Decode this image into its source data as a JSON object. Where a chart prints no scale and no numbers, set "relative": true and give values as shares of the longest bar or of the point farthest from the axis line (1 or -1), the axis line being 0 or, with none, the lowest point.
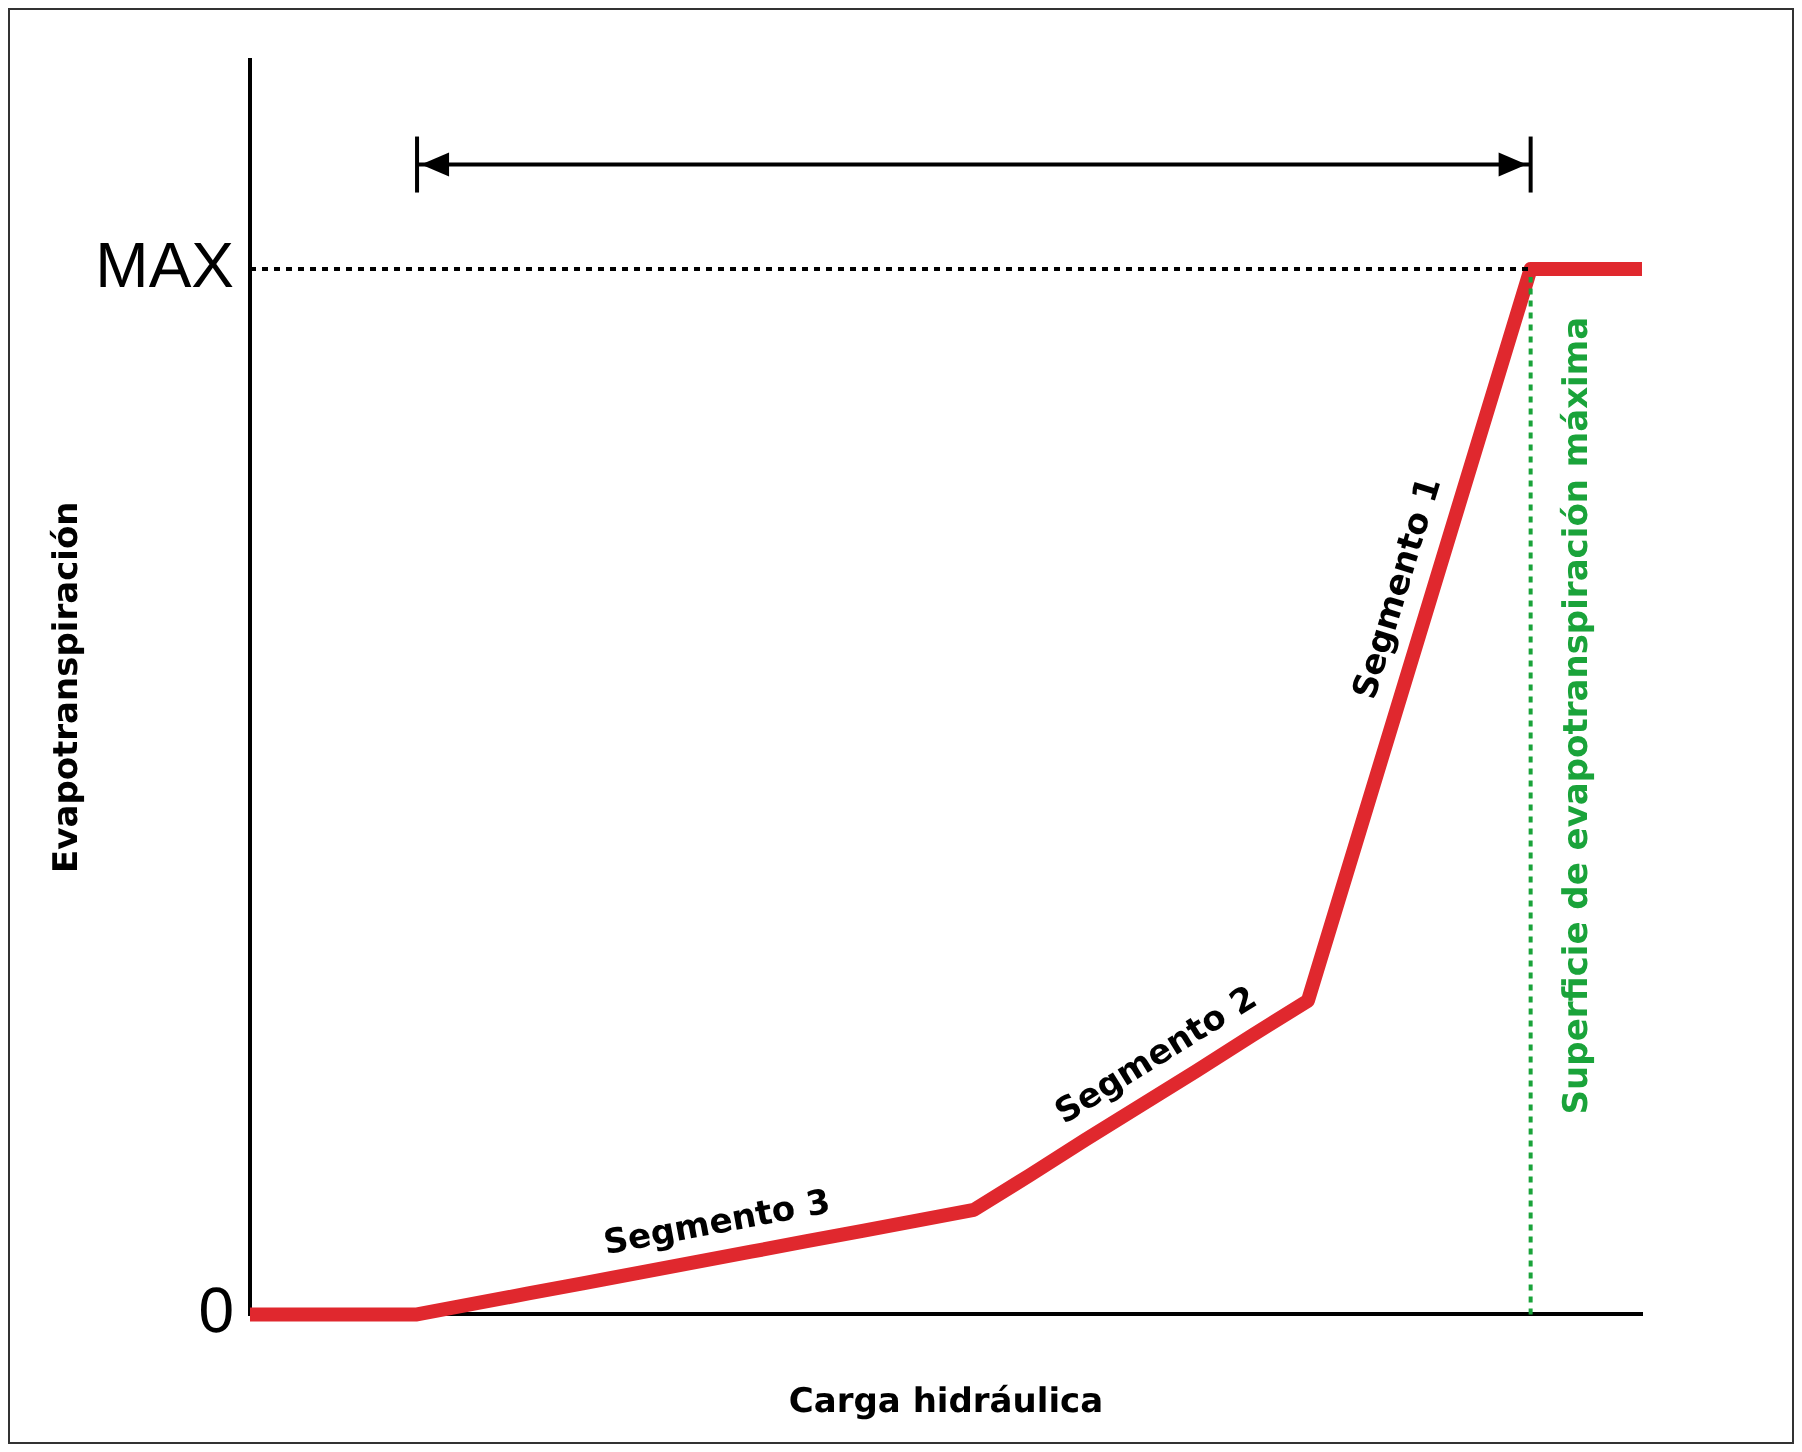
{
  "chart_data": {
    "type": "line",
    "xlabel": "Carga hidráulica",
    "ylabel": "Evapotranspiración",
    "categories": [
      null,
      null,
      null,
      null,
      null,
      null,
      null,
      null,
      null,
      null,
      null,
      null,
      null,
      null,
      null,
      null,
      null,
      null,
      null,
      null,
      null,
      null,
      null,
      null,
      null,
      null
    ],
    "series": [
      {
        "color": "#e0282e",
        "values": [
          0,
          0,
          0,
          0,
          0.01,
          0.02,
          0.03,
          0.04,
          0.05,
          0.06,
          0.07,
          0.08,
          0.09,
          0.1,
          0.133,
          0.167,
          0.2,
          0.233,
          0.267,
          0.3,
          0.475,
          0.65,
          0.825,
          1,
          1,
          1
        ]
      }
    ],
    "relative": true,
    "grid": false,
    "legend": false,
    "marker": "none",
    "line_style": "solid",
    "ref_lines": [
      {
        "axis": "y",
        "value": 1,
        "label": null,
        "color": "#000000",
        "line_style": "dotted"
      },
      {
        "axis": "x",
        "label": "Superficie de evapotranspiración máxima",
        "color": "#1aa33a",
        "line_style": "dotted"
      }
    ],
    "annotations": [
      "Segmento 1",
      "Segmento 2",
      "Segmento 3",
      "0",
      "MAX"
    ]
  }
}
